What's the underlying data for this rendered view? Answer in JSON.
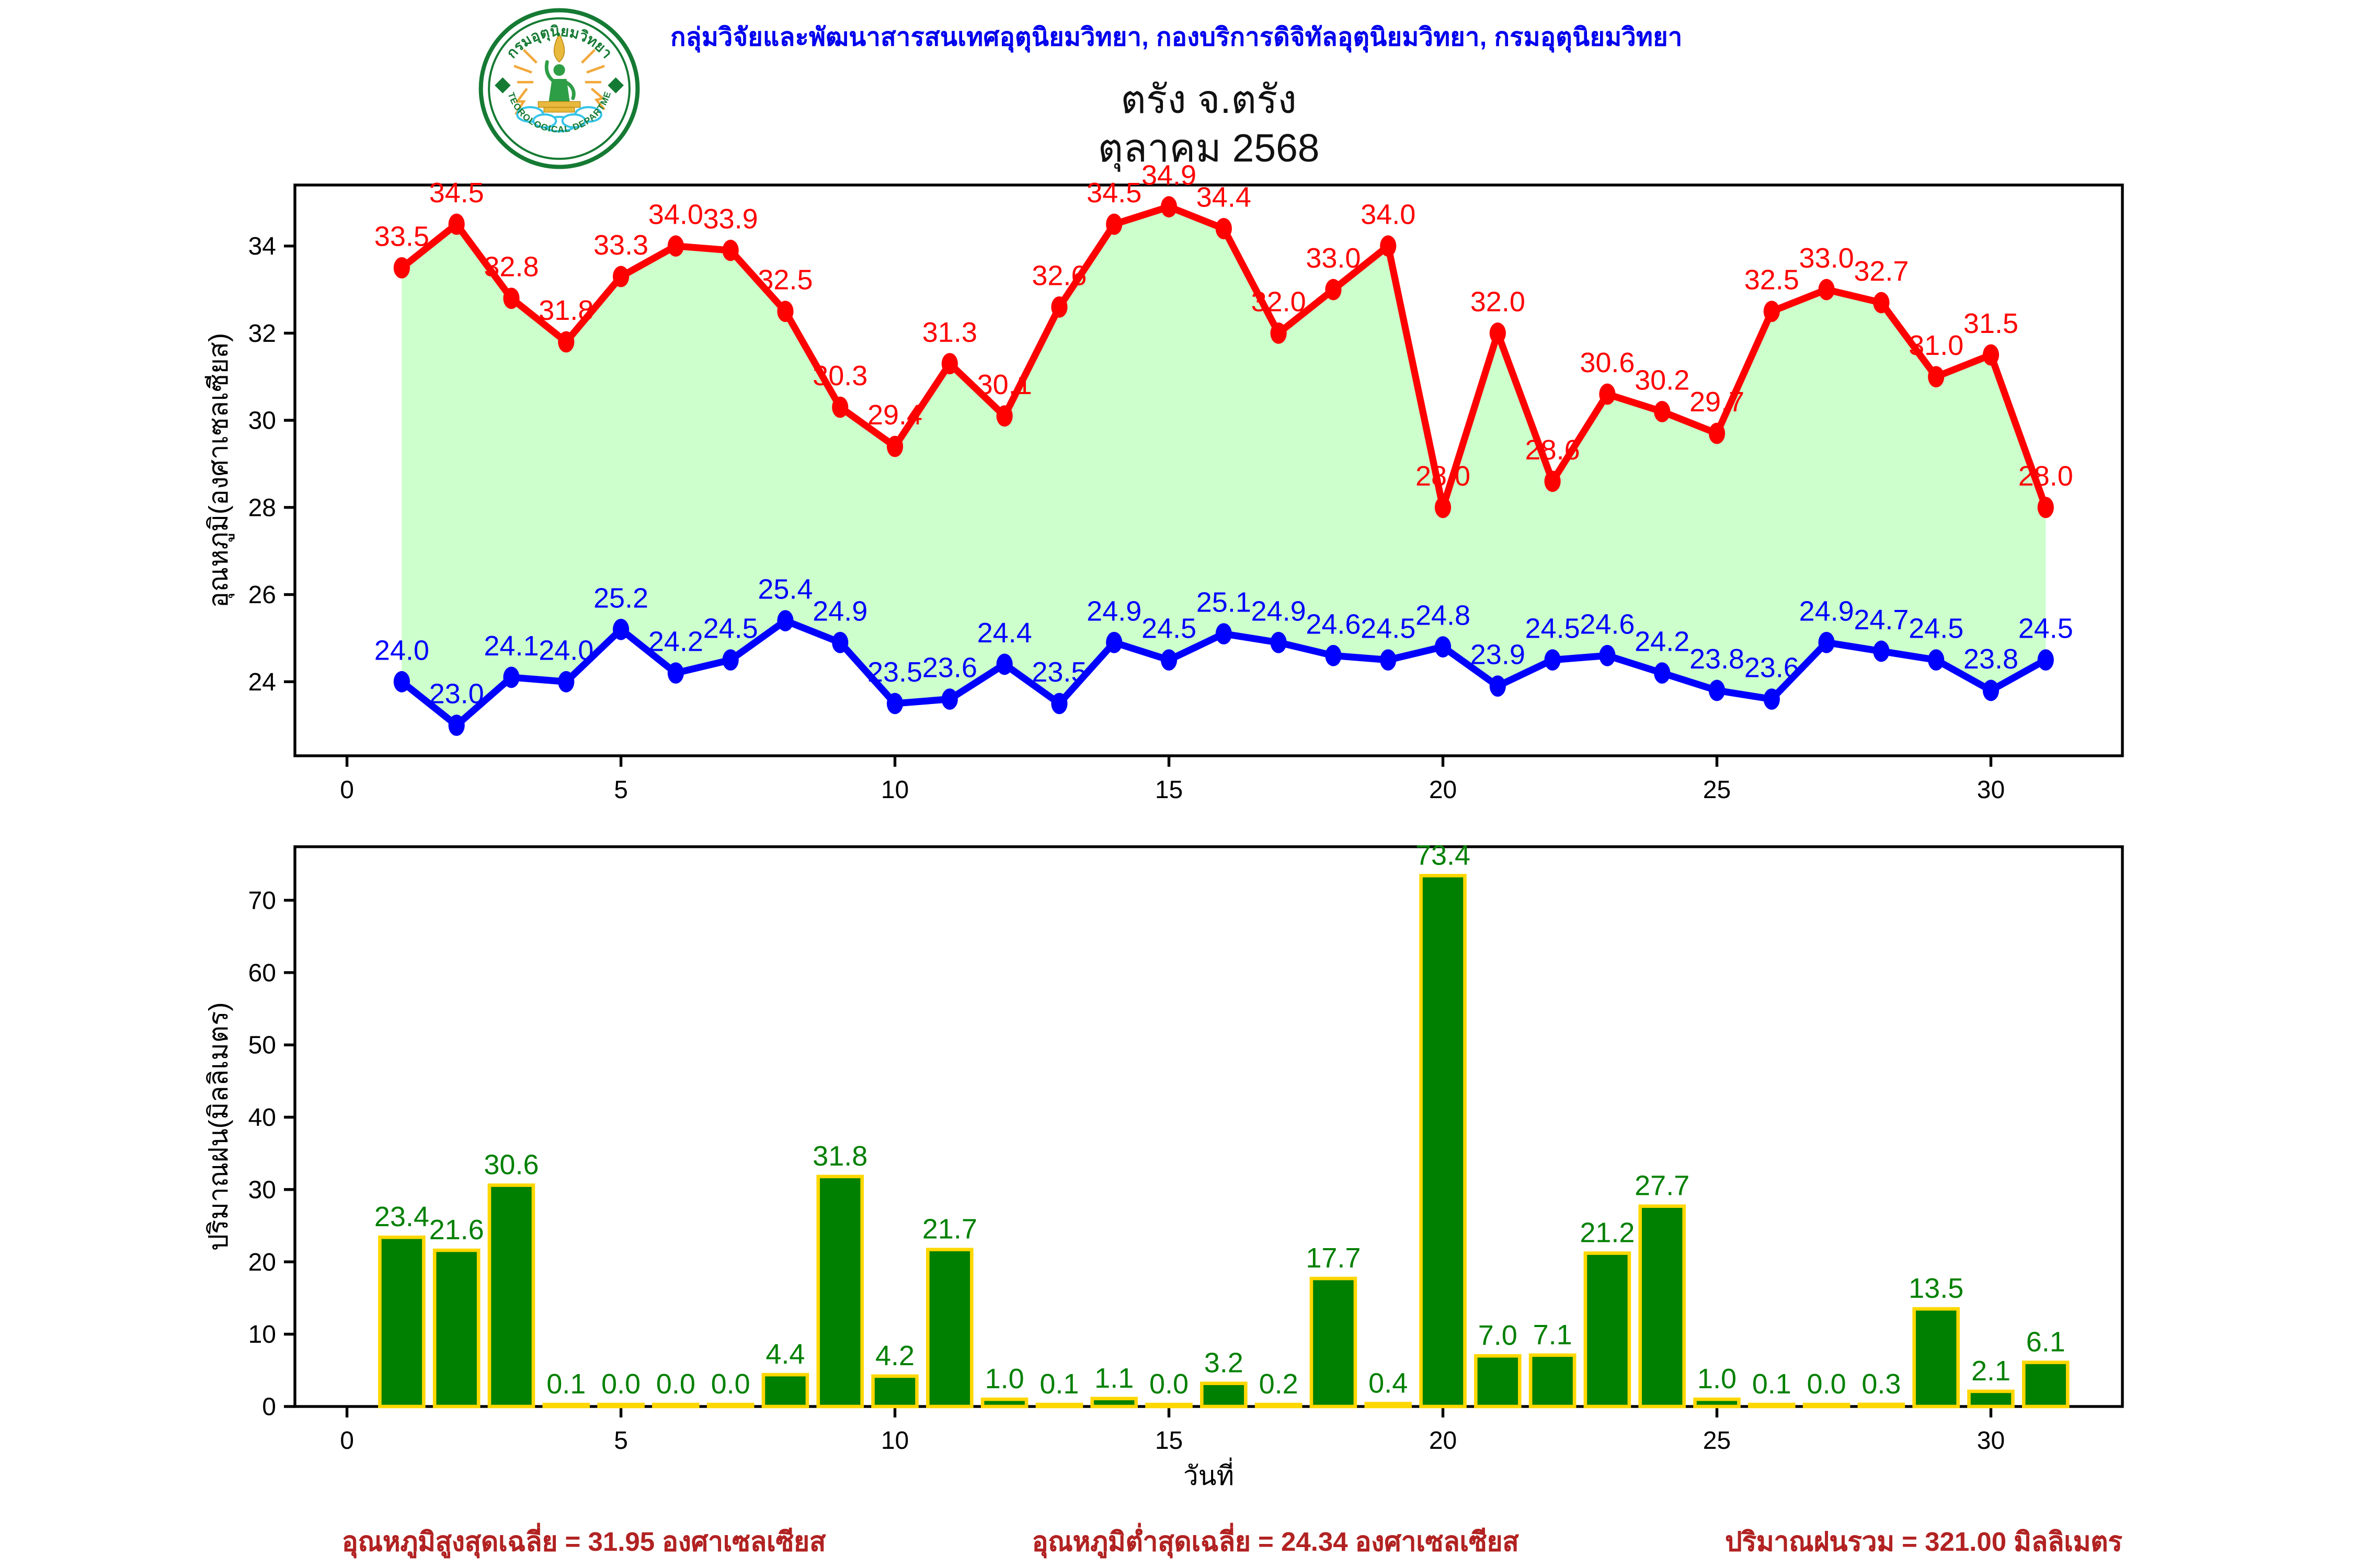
{
  "header": {
    "org_line": "กลุ่มวิจัยและพัฒนาสารสนเทศอุตุนิยมวิทยา, กองบริการดิจิทัลอุตุนิยมวิทยา, กรมอุตุนิยมวิทยา"
  },
  "logo": {
    "top_text": "กรมอุตุนิยมวิทยา",
    "bottom_text": "METEOROLOGICAL DEPARTMENT"
  },
  "title": {
    "station": "ตรัง จ.ตรัง",
    "month": "ตุลาคม 2568"
  },
  "chart_data": [
    {
      "type": "line",
      "x": [
        1,
        2,
        3,
        4,
        5,
        6,
        7,
        8,
        9,
        10,
        11,
        12,
        13,
        14,
        15,
        16,
        17,
        18,
        19,
        20,
        21,
        22,
        23,
        24,
        25,
        26,
        27,
        28,
        29,
        30,
        31
      ],
      "series": [
        {
          "name": "max_temp",
          "color": "#ff0000",
          "values": [
            33.5,
            34.5,
            32.8,
            31.8,
            33.3,
            34.0,
            33.9,
            32.5,
            30.3,
            29.4,
            31.3,
            30.1,
            32.6,
            34.5,
            34.9,
            34.4,
            32.0,
            33.0,
            34.0,
            28.0,
            32.0,
            28.6,
            30.6,
            30.2,
            29.7,
            32.5,
            33.0,
            32.7,
            31.0,
            31.5,
            28.0
          ]
        },
        {
          "name": "min_temp",
          "color": "#0000ff",
          "values": [
            24.0,
            23.0,
            24.1,
            24.0,
            25.2,
            24.2,
            24.5,
            25.4,
            24.9,
            23.5,
            23.6,
            24.4,
            23.5,
            24.9,
            24.5,
            25.1,
            24.9,
            24.6,
            24.5,
            24.8,
            23.9,
            24.5,
            24.6,
            24.2,
            23.8,
            23.6,
            24.9,
            24.7,
            24.5,
            23.8,
            24.5
          ]
        }
      ],
      "fill_between_color": "#ccffcc",
      "ylabel": "อุณหภูมิ(องศาเซลเซียส)",
      "yticks": [
        24,
        26,
        28,
        30,
        32,
        34
      ],
      "xticks": [
        0,
        5,
        10,
        15,
        20,
        25,
        30
      ],
      "ylim": [
        22.3,
        35.4
      ],
      "xlim": [
        -0.95,
        32.4
      ],
      "grid": false,
      "legend": "none"
    },
    {
      "type": "bar",
      "x": [
        1,
        2,
        3,
        4,
        5,
        6,
        7,
        8,
        9,
        10,
        11,
        12,
        13,
        14,
        15,
        16,
        17,
        18,
        19,
        20,
        21,
        22,
        23,
        24,
        25,
        26,
        27,
        28,
        29,
        30,
        31
      ],
      "values": [
        23.4,
        21.6,
        30.6,
        0.1,
        0.0,
        0.0,
        0.0,
        4.4,
        31.8,
        4.2,
        21.7,
        1.0,
        0.1,
        1.1,
        0.0,
        3.2,
        0.2,
        17.7,
        0.4,
        73.4,
        7.0,
        7.1,
        21.2,
        27.7,
        1.0,
        0.1,
        0.0,
        0.3,
        13.5,
        2.1,
        6.1
      ],
      "bar_color": "#008000",
      "bar_edge_color": "#ffd700",
      "label_color": "#008000",
      "ylabel": "ปริมาณฝน(มิลลิเมตร)",
      "xlabel": "วันที่",
      "yticks": [
        0,
        10,
        20,
        30,
        40,
        50,
        60,
        70
      ],
      "xticks": [
        0,
        5,
        10,
        15,
        20,
        25,
        30
      ],
      "ylim": [
        0,
        77.4
      ],
      "xlim": [
        -0.95,
        32.4
      ],
      "grid": false,
      "legend": "none"
    }
  ],
  "footer": {
    "avg_max": "อุณหภูมิสูงสุดเฉลี่ย = 31.95 องศาเซลเซียส",
    "avg_min": "อุณหภูมิต่ำสุดเฉลี่ย = 24.34 องศาเซลเซียส",
    "rain_total": "ปริมาณฝนรวม = 321.00 มิลลิเมตร"
  },
  "colors": {
    "header_text": "#0000ee",
    "footer_text": "#b22222",
    "logo_green": "#157a33",
    "logo_gold": "#e8b93c",
    "logo_orange": "#f2a83b",
    "logo_cyan": "#35c4e8",
    "axis": "#000000"
  }
}
